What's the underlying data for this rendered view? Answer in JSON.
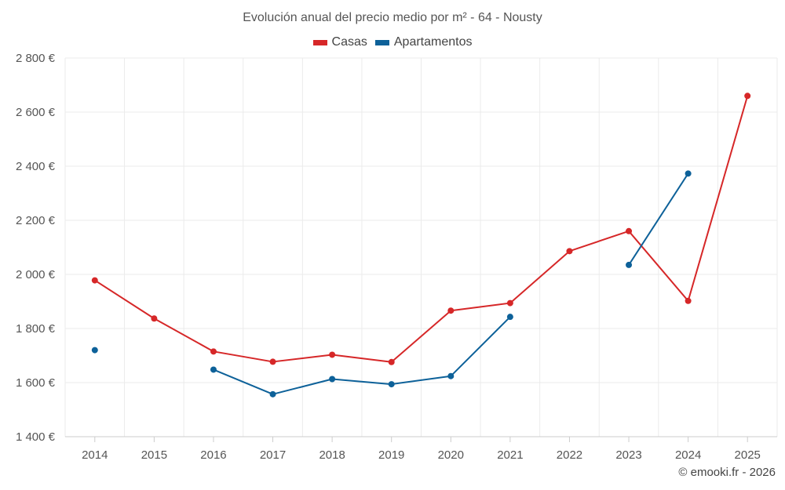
{
  "chart_data": {
    "type": "line",
    "title": "Evolución anual del precio medio por m² - 64 - Nousty",
    "categories": [
      "2014",
      "2015",
      "2016",
      "2017",
      "2018",
      "2019",
      "2020",
      "2021",
      "2022",
      "2023",
      "2024",
      "2025"
    ],
    "series": [
      {
        "name": "Casas",
        "color": "#d62728",
        "values": [
          1978,
          1837,
          1715,
          1677,
          1703,
          1676,
          1866,
          1894,
          2086,
          2160,
          1902,
          2660
        ]
      },
      {
        "name": "Apartamentos",
        "color": "#0d6199",
        "values": [
          1720,
          null,
          1648,
          1557,
          1613,
          1594,
          1624,
          1843,
          null,
          2035,
          2373,
          null
        ]
      }
    ],
    "ylim": [
      1400,
      2800
    ],
    "yticks": [
      1400,
      1600,
      1800,
      2000,
      2200,
      2400,
      2600,
      2800
    ],
    "ytick_labels": [
      "1 400 €",
      "1 600 €",
      "1 800 €",
      "2 000 €",
      "2 200 €",
      "2 400 €",
      "2 600 €",
      "2 800 €"
    ],
    "xlabel": "",
    "ylabel": "",
    "grid": true,
    "legend_position": "top-center"
  },
  "credit": "© emooki.fr - 2026"
}
